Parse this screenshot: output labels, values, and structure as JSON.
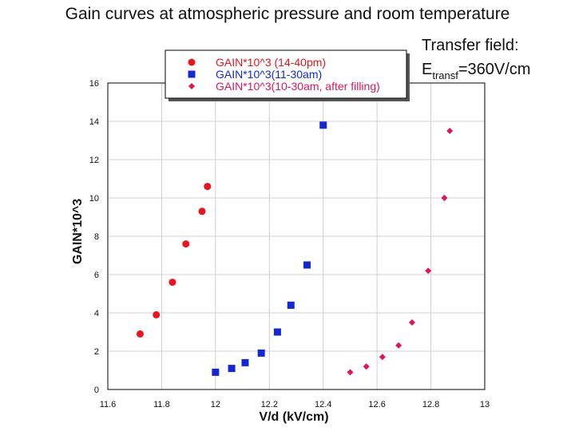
{
  "title": "Gain curves at atmospheric pressure and room temperature",
  "transfer": {
    "line1": "Transfer field:",
    "prefix": "E",
    "subscript": "transf",
    "value": "=360V/cm"
  },
  "chart_data": {
    "type": "scatter",
    "xlabel": "V/d (kV/cm)",
    "ylabel": "GAIN*10^3",
    "xlim": [
      11.6,
      13
    ],
    "ylim": [
      0,
      16
    ],
    "xticks": [
      "11.6",
      "11.8",
      "12",
      "12.2",
      "12.4",
      "12.6",
      "12.8",
      "13"
    ],
    "yticks": [
      "0",
      "2",
      "4",
      "6",
      "8",
      "10",
      "12",
      "14",
      "16"
    ],
    "grid": true,
    "legend_position": "top",
    "series": [
      {
        "name": "GAIN*10^3 (14-40pm)",
        "marker": "circle",
        "color": "#e8141e",
        "points": [
          [
            11.72,
            2.9
          ],
          [
            11.78,
            3.9
          ],
          [
            11.84,
            5.6
          ],
          [
            11.89,
            7.6
          ],
          [
            11.95,
            9.3
          ],
          [
            11.97,
            10.6
          ]
        ]
      },
      {
        "name": "GAIN*10^3(11-30am)",
        "marker": "square",
        "color": "#1428d2",
        "points": [
          [
            12.0,
            0.9
          ],
          [
            12.06,
            1.1
          ],
          [
            12.11,
            1.4
          ],
          [
            12.17,
            1.9
          ],
          [
            12.23,
            3.0
          ],
          [
            12.28,
            4.4
          ],
          [
            12.34,
            6.5
          ],
          [
            12.4,
            13.8
          ]
        ]
      },
      {
        "name": "GAIN*10^3(10-30am, after filling)",
        "marker": "diamond",
        "color": "#e0145a",
        "points": [
          [
            12.5,
            0.9
          ],
          [
            12.56,
            1.2
          ],
          [
            12.62,
            1.7
          ],
          [
            12.68,
            2.3
          ],
          [
            12.73,
            3.5
          ],
          [
            12.79,
            6.2
          ],
          [
            12.85,
            10.0
          ],
          [
            12.87,
            13.5
          ]
        ]
      }
    ]
  }
}
